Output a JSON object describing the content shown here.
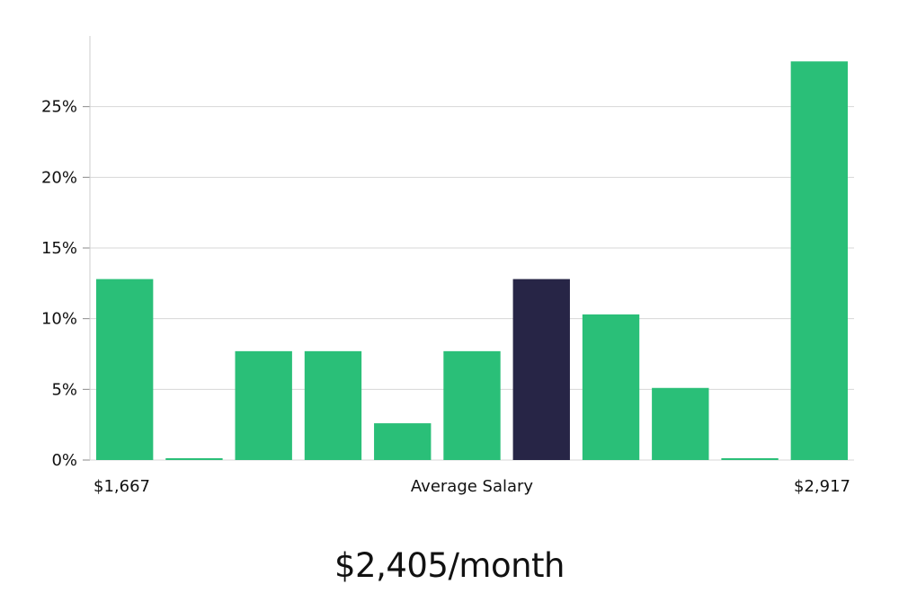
{
  "chart_data": {
    "type": "bar",
    "values": [
      12.8,
      0,
      7.7,
      7.7,
      2.6,
      7.7,
      12.8,
      10.3,
      5.1,
      0,
      28.2
    ],
    "highlight_index": 6,
    "ylim": [
      0,
      30
    ],
    "yticks": [
      0,
      5,
      10,
      15,
      20,
      25
    ],
    "ytick_labels": [
      "0%",
      "5%",
      "10%",
      "15%",
      "20%",
      "25%"
    ],
    "x_min_label": "$1,667",
    "x_max_label": "$2,917",
    "xlabel": "Average Salary",
    "grid": true,
    "colors": {
      "bar": "#2abf78",
      "highlight": "#272546",
      "grid": "#d7d7d7",
      "axis": "#cccccc"
    }
  },
  "headline": "$2,405/month"
}
